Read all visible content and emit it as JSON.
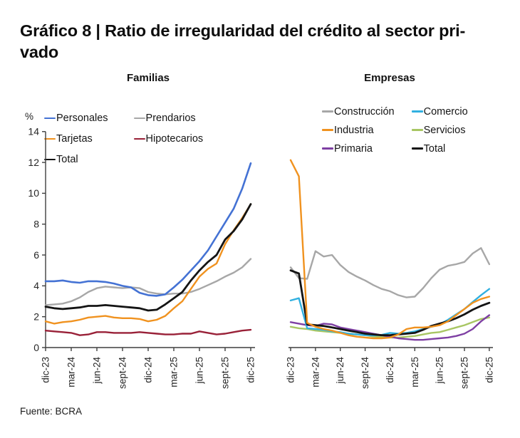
{
  "title": {
    "line1": "Gráfico 8 | Ratio de irregularidad del crédito al sector pri-",
    "line2": "vado",
    "full": "Gráfico 8 | Ratio de irregularidad del crédito al sector privado"
  },
  "source": "Fuente: BCRA",
  "axes": {
    "y_unit": "%",
    "y_ticks": [
      0,
      2,
      4,
      6,
      8,
      10,
      12,
      14
    ],
    "ylim": [
      0,
      14
    ],
    "x_tick_labels": [
      "dic-23",
      "mar-24",
      "jun-24",
      "sept-24",
      "dic-24",
      "mar-25",
      "jun-25",
      "sept-25",
      "dic-25"
    ],
    "grid": "off",
    "x_label_rotation": 90
  },
  "chart_data": [
    {
      "type": "line",
      "title": "Familias",
      "ylim": [
        0,
        14
      ],
      "legend_position": "top-left, 2 columns",
      "x_monthly": [
        "dic-23",
        "ene-24",
        "feb-24",
        "mar-24",
        "abr-24",
        "may-24",
        "jun-24",
        "jul-24",
        "ago-24",
        "sept-24",
        "oct-24",
        "nov-24",
        "dic-24",
        "ene-25",
        "feb-25",
        "mar-25",
        "abr-25",
        "may-25",
        "jun-25",
        "jul-25",
        "ago-25",
        "sept-25",
        "oct-25",
        "nov-25",
        "dic-25"
      ],
      "series": [
        {
          "name": "Personales",
          "color": "#4472d4",
          "values": [
            4.3,
            4.3,
            4.35,
            4.25,
            4.2,
            4.3,
            4.3,
            4.25,
            4.15,
            4.0,
            3.9,
            3.55,
            3.4,
            3.35,
            3.45,
            3.9,
            4.4,
            5.0,
            5.6,
            6.3,
            7.2,
            8.1,
            9.0,
            10.3,
            11.95
          ]
        },
        {
          "name": "Tarjetas",
          "color": "#f0921f",
          "values": [
            1.7,
            1.55,
            1.65,
            1.7,
            1.8,
            1.95,
            2.0,
            2.05,
            1.95,
            1.9,
            1.9,
            1.85,
            1.7,
            1.8,
            2.05,
            2.55,
            3.0,
            3.8,
            4.6,
            5.1,
            5.45,
            6.7,
            7.6,
            8.4,
            9.3
          ]
        },
        {
          "name": "Total",
          "color": "#141414",
          "values": [
            2.65,
            2.55,
            2.5,
            2.55,
            2.6,
            2.7,
            2.7,
            2.75,
            2.7,
            2.65,
            2.6,
            2.55,
            2.4,
            2.45,
            2.8,
            3.2,
            3.6,
            4.35,
            5.0,
            5.55,
            6.0,
            7.0,
            7.55,
            8.3,
            9.3
          ]
        },
        {
          "name": "Prendarios",
          "color": "#a7a7a7",
          "values": [
            2.75,
            2.8,
            2.85,
            3.0,
            3.25,
            3.6,
            3.85,
            3.95,
            3.9,
            3.85,
            3.9,
            3.85,
            3.6,
            3.5,
            3.45,
            3.5,
            3.5,
            3.6,
            3.8,
            4.05,
            4.3,
            4.6,
            4.85,
            5.2,
            5.75
          ]
        },
        {
          "name": "Hipotecarios",
          "color": "#992138",
          "values": [
            1.1,
            1.05,
            1.0,
            0.95,
            0.8,
            0.85,
            1.0,
            1.0,
            0.95,
            0.95,
            0.95,
            1.0,
            0.95,
            0.9,
            0.85,
            0.85,
            0.9,
            0.9,
            1.05,
            0.95,
            0.85,
            0.9,
            1.0,
            1.1,
            1.15
          ]
        }
      ]
    },
    {
      "type": "line",
      "title": "Empresas",
      "ylim": [
        0,
        14
      ],
      "legend_position": "top, 2 columns",
      "x_monthly": [
        "dic-23",
        "ene-24",
        "feb-24",
        "mar-24",
        "abr-24",
        "may-24",
        "jun-24",
        "jul-24",
        "ago-24",
        "sept-24",
        "oct-24",
        "nov-24",
        "dic-24",
        "ene-25",
        "feb-25",
        "mar-25",
        "abr-25",
        "may-25",
        "jun-25",
        "jul-25",
        "ago-25",
        "sept-25",
        "oct-25",
        "nov-25",
        "dic-25"
      ],
      "series": [
        {
          "name": "Construcción",
          "color": "#a7a7a7",
          "values": [
            5.2,
            4.5,
            4.45,
            6.25,
            5.9,
            6.0,
            5.35,
            4.9,
            4.6,
            4.35,
            4.05,
            3.8,
            3.65,
            3.4,
            3.25,
            3.3,
            3.85,
            4.5,
            5.05,
            5.3,
            5.4,
            5.55,
            6.1,
            6.45,
            5.4
          ]
        },
        {
          "name": "Industria",
          "color": "#f0921f",
          "values": [
            12.15,
            11.1,
            1.6,
            1.35,
            1.2,
            1.1,
            0.95,
            0.8,
            0.7,
            0.65,
            0.6,
            0.6,
            0.65,
            0.85,
            1.2,
            1.3,
            1.3,
            1.35,
            1.45,
            1.7,
            2.1,
            2.5,
            2.9,
            3.15,
            3.3
          ]
        },
        {
          "name": "Primaria",
          "color": "#7e3fa3",
          "values": [
            1.65,
            1.55,
            1.45,
            1.4,
            1.55,
            1.5,
            1.3,
            1.2,
            1.1,
            1.0,
            0.9,
            0.8,
            0.7,
            0.6,
            0.55,
            0.5,
            0.5,
            0.55,
            0.6,
            0.65,
            0.75,
            0.9,
            1.2,
            1.7,
            2.1
          ]
        },
        {
          "name": "Comercio",
          "color": "#31b0e0",
          "values": [
            3.05,
            3.2,
            1.25,
            1.2,
            1.15,
            1.05,
            1.0,
            0.9,
            0.85,
            0.8,
            0.78,
            0.82,
            0.95,
            0.9,
            0.95,
            1.05,
            1.2,
            1.35,
            1.5,
            1.8,
            2.15,
            2.5,
            2.95,
            3.4,
            3.8
          ]
        },
        {
          "name": "Servicios",
          "color": "#a8c663",
          "values": [
            1.35,
            1.25,
            1.2,
            1.1,
            1.05,
            1.0,
            0.95,
            0.9,
            0.85,
            0.8,
            0.72,
            0.68,
            0.65,
            0.65,
            0.7,
            0.75,
            0.85,
            0.95,
            1.0,
            1.15,
            1.3,
            1.45,
            1.65,
            1.85,
            1.95
          ]
        },
        {
          "name": "Total",
          "color": "#141414",
          "values": [
            5.0,
            4.8,
            1.5,
            1.45,
            1.4,
            1.3,
            1.2,
            1.1,
            1.0,
            0.9,
            0.85,
            0.8,
            0.8,
            0.85,
            0.9,
            0.95,
            1.15,
            1.4,
            1.55,
            1.7,
            1.9,
            2.15,
            2.45,
            2.7,
            2.9
          ]
        }
      ]
    }
  ]
}
